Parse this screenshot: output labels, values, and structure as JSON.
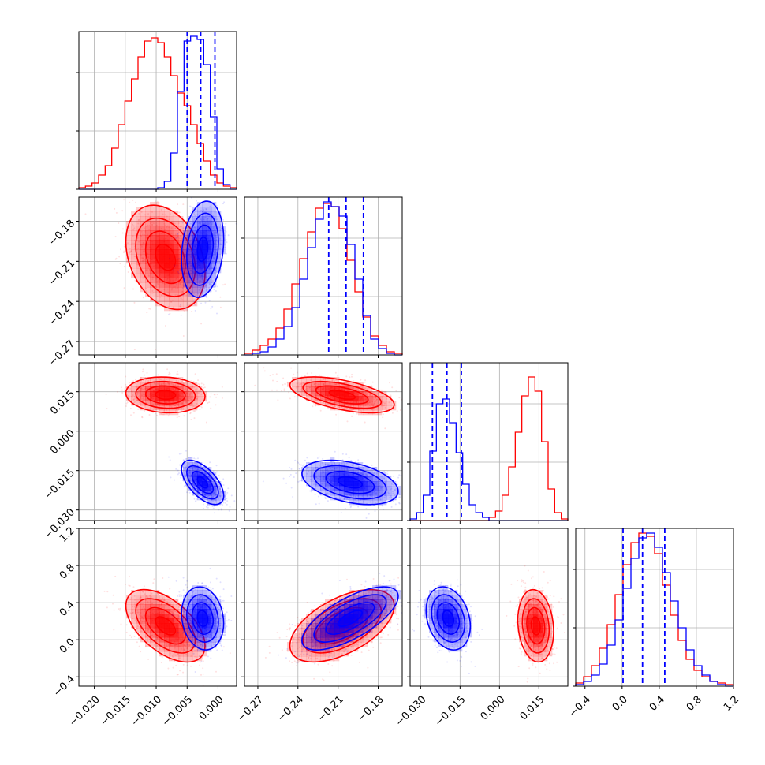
{
  "chart_data": {
    "type": "corner",
    "colors": {
      "red": "#ff0000",
      "blue": "#0000ff",
      "grid": "#b0b0b0"
    },
    "params": [
      {
        "lim": [
          -0.0225,
          0.003
        ],
        "ticks": [
          -0.02,
          -0.015,
          -0.01,
          -0.005,
          0.0
        ],
        "tick_labels": [
          "−0.020",
          "−0.015",
          "−0.010",
          "−0.005",
          "0.000"
        ]
      },
      {
        "lim": [
          -0.28,
          -0.162
        ],
        "ticks": [
          -0.27,
          -0.24,
          -0.21,
          -0.18
        ],
        "tick_labels": [
          "−0.27",
          "−0.24",
          "−0.21",
          "−0.18"
        ]
      },
      {
        "lim": [
          -0.034,
          0.026
        ],
        "ticks": [
          -0.03,
          -0.015,
          0.0,
          0.015
        ],
        "tick_labels": [
          "−0.030",
          "−0.015",
          "0.000",
          "0.015"
        ]
      },
      {
        "lim": [
          -0.5,
          1.2
        ],
        "ticks": [
          -0.4,
          0.0,
          0.4,
          0.8,
          1.2
        ],
        "tick_labels": [
          "−0.4",
          "0.0",
          "0.4",
          "0.8",
          "1.2"
        ]
      }
    ],
    "quantiles_blue": [
      [
        -0.005,
        -0.0028,
        -0.0005
      ],
      [
        -0.217,
        -0.204,
        -0.191
      ],
      [
        -0.0255,
        -0.02,
        -0.0145
      ],
      [
        0.01,
        0.22,
        0.46
      ]
    ],
    "marginals": [
      {
        "red": [
          0.01,
          0.02,
          0.04,
          0.09,
          0.15,
          0.26,
          0.41,
          0.56,
          0.7,
          0.84,
          0.94,
          0.96,
          0.93,
          0.84,
          0.72,
          0.61,
          0.53,
          0.41,
          0.29,
          0.18,
          0.09,
          0.04,
          0.02,
          0.01
        ],
        "blue": [
          0,
          0,
          0,
          0,
          0,
          0,
          0,
          0,
          0,
          0,
          0,
          0,
          0.01,
          0.05,
          0.23,
          0.62,
          0.94,
          0.97,
          0.95,
          0.79,
          0.46,
          0.13,
          0.03,
          0
        ]
      },
      {
        "red": [
          0.01,
          0.03,
          0.06,
          0.1,
          0.17,
          0.29,
          0.45,
          0.61,
          0.78,
          0.93,
          0.96,
          0.94,
          0.8,
          0.6,
          0.4,
          0.24,
          0.12,
          0.06,
          0.02,
          0.01
        ],
        "blue": [
          0,
          0.01,
          0.02,
          0.05,
          0.1,
          0.18,
          0.3,
          0.48,
          0.68,
          0.86,
          0.97,
          0.94,
          0.88,
          0.7,
          0.48,
          0.25,
          0.1,
          0.04,
          0.01,
          0
        ]
      },
      {
        "red": [
          0,
          0,
          0,
          0,
          0,
          0,
          0,
          0,
          0,
          0,
          0,
          0,
          0.02,
          0.06,
          0.16,
          0.34,
          0.56,
          0.79,
          0.91,
          0.82,
          0.5,
          0.2,
          0.05,
          0.01
        ],
        "blue": [
          0.01,
          0.05,
          0.16,
          0.44,
          0.74,
          0.77,
          0.62,
          0.43,
          0.23,
          0.1,
          0.05,
          0.02,
          0,
          0,
          0,
          0,
          0,
          0,
          0,
          0,
          0,
          0,
          0,
          0
        ]
      },
      {
        "red": [
          0.02,
          0.06,
          0.13,
          0.24,
          0.39,
          0.58,
          0.77,
          0.91,
          0.97,
          0.95,
          0.84,
          0.64,
          0.45,
          0.29,
          0.17,
          0.1,
          0.06,
          0.03,
          0.02,
          0.01
        ],
        "blue": [
          0.01,
          0.03,
          0.07,
          0.14,
          0.26,
          0.42,
          0.62,
          0.81,
          0.94,
          0.97,
          0.88,
          0.72,
          0.54,
          0.37,
          0.23,
          0.13,
          0.07,
          0.03,
          0.01,
          0
        ]
      }
    ],
    "populations": [
      {
        "color": "red",
        "mean": [
          -0.0085,
          -0.207,
          0.0138,
          0.15
        ],
        "sd": [
          0.0032,
          0.0195,
          0.0034,
          0.195
        ],
        "corr": [
          [
            1,
            -0.3,
            -0.1,
            -0.55
          ],
          [
            -0.3,
            1,
            -0.55,
            0.55
          ],
          [
            -0.1,
            -0.55,
            1,
            -0.15
          ],
          [
            -0.55,
            0.55,
            -0.15,
            1
          ]
        ]
      },
      {
        "color": "blue",
        "mean": [
          -0.0025,
          -0.201,
          -0.0195,
          0.23
        ],
        "sd": [
          0.0017,
          0.018,
          0.0042,
          0.17
        ],
        "corr": [
          [
            1,
            0.2,
            -0.6,
            -0.15
          ],
          [
            0.2,
            1,
            -0.4,
            0.7
          ],
          [
            -0.6,
            -0.4,
            1,
            -0.25
          ],
          [
            -0.15,
            0.7,
            -0.25,
            1
          ]
        ]
      }
    ]
  }
}
